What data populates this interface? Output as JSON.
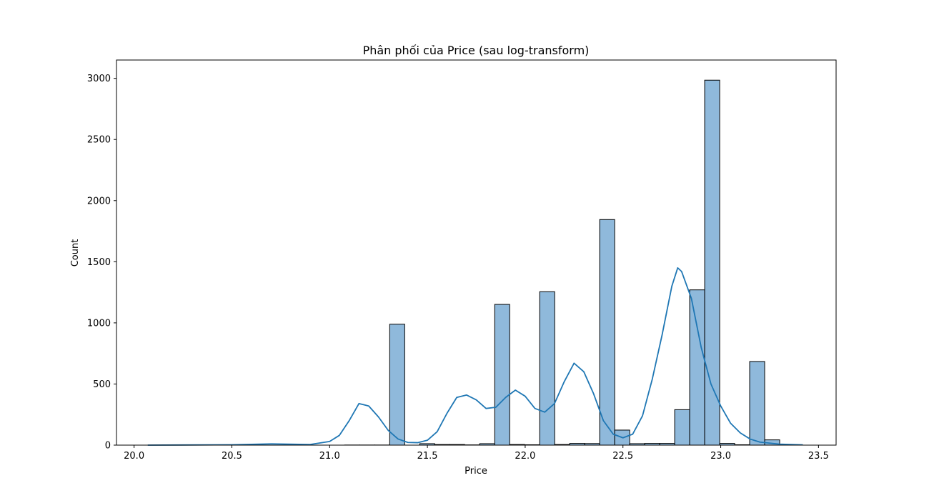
{
  "chart_data": {
    "type": "bar",
    "title": "Phân phối của Price (sau log-transform)",
    "xlabel": "Price",
    "ylabel": "Count",
    "xlim": [
      19.91,
      23.59
    ],
    "ylim": [
      0,
      3150
    ],
    "xticks": [
      "20.0",
      "20.5",
      "21.0",
      "21.5",
      "22.0",
      "22.5",
      "23.0",
      "23.5"
    ],
    "yticks": [
      "0",
      "500",
      "1000",
      "1500",
      "2000",
      "2500",
      "3000"
    ],
    "grid": false,
    "legend": false,
    "bin_start": 20.08,
    "bin_width": 0.0767,
    "counts": [
      0,
      0,
      0,
      0,
      0,
      0,
      0,
      0,
      0,
      0,
      0,
      0,
      0,
      1,
      1,
      1,
      989,
      0,
      12,
      5,
      5,
      2,
      12,
      1151,
      5,
      3,
      1255,
      5,
      14,
      13,
      1845,
      123,
      12,
      14,
      14,
      290,
      1270,
      2985,
      14,
      3,
      684,
      43,
      0,
      0
    ],
    "kde": {
      "x": [
        20.07,
        20.5,
        20.7,
        20.9,
        21.0,
        21.05,
        21.1,
        21.15,
        21.2,
        21.25,
        21.3,
        21.35,
        21.4,
        21.45,
        21.5,
        21.55,
        21.6,
        21.65,
        21.7,
        21.75,
        21.8,
        21.85,
        21.9,
        21.95,
        22.0,
        22.05,
        22.1,
        22.15,
        22.2,
        22.25,
        22.3,
        22.35,
        22.4,
        22.45,
        22.5,
        22.55,
        22.6,
        22.65,
        22.7,
        22.75,
        22.78,
        22.8,
        22.85,
        22.9,
        22.95,
        23.0,
        23.05,
        23.1,
        23.15,
        23.2,
        23.3,
        23.42
      ],
      "y": [
        0,
        3,
        10,
        5,
        30,
        80,
        200,
        340,
        320,
        230,
        120,
        50,
        22,
        20,
        40,
        110,
        260,
        390,
        410,
        370,
        300,
        310,
        390,
        450,
        400,
        300,
        270,
        340,
        520,
        670,
        600,
        420,
        200,
        90,
        60,
        90,
        240,
        540,
        900,
        1300,
        1450,
        1420,
        1200,
        800,
        500,
        320,
        180,
        100,
        50,
        25,
        8,
        2
      ]
    },
    "colors": {
      "bar_fill": "#8fb9db",
      "bar_edge": "#000000",
      "kde_line": "#1f77b4"
    }
  }
}
